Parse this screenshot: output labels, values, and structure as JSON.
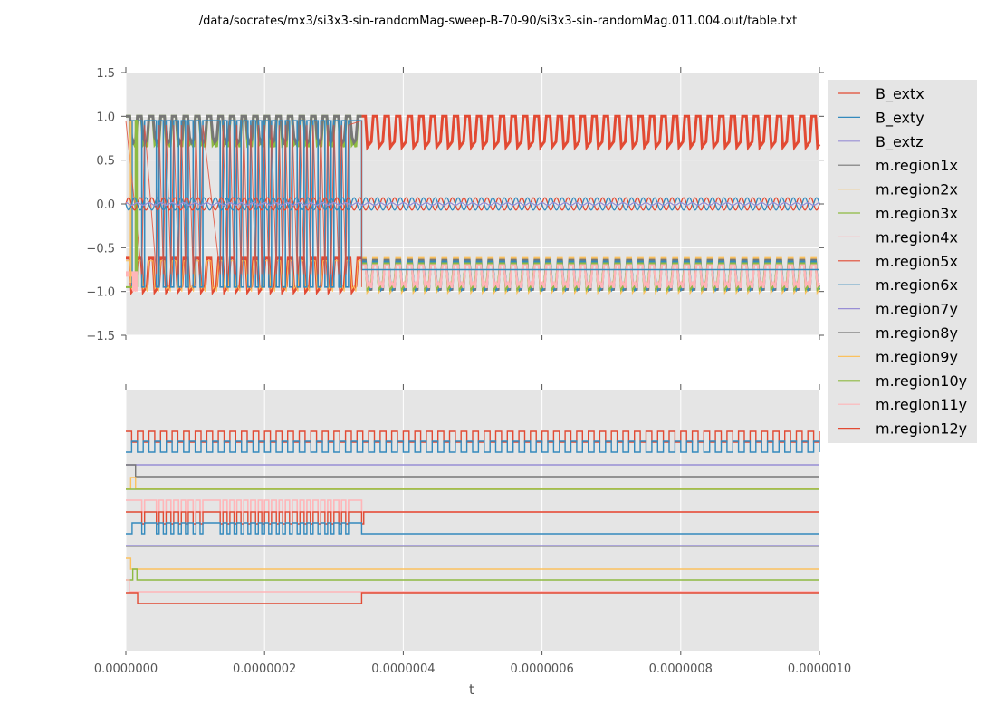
{
  "chart_data": {
    "title": "/data/socrates/mx3/si3x3-sin-randomMag-sweep-B-70-90/si3x3-sin-randomMag.011.004.out/table.txt",
    "type": "line",
    "style": {
      "background": "#e5e5e5",
      "grid_color": "#ffffff",
      "palette": [
        "#e24a33",
        "#348abd",
        "#988ed5",
        "#777777",
        "#fbc15e",
        "#8eba42",
        "#ffb5b8"
      ]
    },
    "legend": {
      "placement": "right, outside top axes",
      "entries": [
        {
          "label": "B_extx",
          "color": "#e24a33"
        },
        {
          "label": "B_exty",
          "color": "#348abd"
        },
        {
          "label": "B_extz",
          "color": "#988ed5"
        },
        {
          "label": "m.region1x",
          "color": "#777777"
        },
        {
          "label": "m.region2x",
          "color": "#fbc15e"
        },
        {
          "label": "m.region3x",
          "color": "#8eba42"
        },
        {
          "label": "m.region4x",
          "color": "#ffb5b8"
        },
        {
          "label": "m.region5x",
          "color": "#e24a33"
        },
        {
          "label": "m.region6x",
          "color": "#348abd"
        },
        {
          "label": "m.region7y",
          "color": "#988ed5"
        },
        {
          "label": "m.region8y",
          "color": "#777777"
        },
        {
          "label": "m.region9y",
          "color": "#fbc15e"
        },
        {
          "label": "m.region10y",
          "color": "#8eba42"
        },
        {
          "label": "m.region11y",
          "color": "#ffb5b8"
        },
        {
          "label": "m.region12y",
          "color": "#e24a33"
        }
      ]
    },
    "xlabel": "t",
    "xlim": [
      0,
      1e-06
    ],
    "xticks": [
      {
        "value": 0,
        "label": "0.0000000"
      },
      {
        "value": 2e-07,
        "label": "0.0000002"
      },
      {
        "value": 4e-07,
        "label": "0.0000004"
      },
      {
        "value": 6e-07,
        "label": "0.0000006"
      },
      {
        "value": 8e-07,
        "label": "0.0000008"
      },
      {
        "value": 1e-06,
        "label": "0.0000010"
      }
    ],
    "top_axes": {
      "ylim": [
        -1.5,
        1.5
      ],
      "yticks": [
        {
          "value": 1.5,
          "label": "1.5"
        },
        {
          "value": 1.0,
          "label": "1.0"
        },
        {
          "value": 0.5,
          "label": "0.5"
        },
        {
          "value": 0.0,
          "label": "0.0"
        },
        {
          "value": -0.5,
          "label": "−0.5"
        },
        {
          "value": -1.0,
          "label": "−1.0"
        },
        {
          "value": -1.5,
          "label": "−1.5"
        }
      ],
      "field_oscillation": {
        "amplitude": 0.07,
        "cycles": 60
      },
      "switch_end_time": 3.4e-07,
      "upper_band": [
        0.65,
        1.0
      ],
      "lower_band": [
        -1.0,
        -0.62
      ]
    },
    "bottom_axes": {
      "yticks_visible": false,
      "square_wave_cycles": 60,
      "region6x_pulse_times": [
        2.3e-08,
        4.4e-08,
        5.4e-08,
        6.5e-08,
        7.6e-08,
        8.6e-08,
        9.7e-08,
        1.07e-07,
        1.36e-07,
        1.46e-07,
        1.56e-07,
        1.66e-07,
        1.76e-07,
        1.87e-07,
        1.96e-07,
        2.06e-07,
        2.17e-07,
        2.26e-07,
        2.36e-07,
        2.47e-07,
        2.57e-07,
        2.66e-07,
        2.77e-07,
        2.87e-07,
        2.96e-07,
        3.07e-07,
        3.17e-07
      ],
      "region6x_rise_time": 9e-09,
      "region6x_end_time": 3.4e-07,
      "region1x_step_time": 1.4e-08,
      "region2x_pulse": [
        7e-09,
        1.4e-08
      ],
      "region9y_step_time": 7e-09,
      "region10y_pulse": [
        1e-08,
        1.6e-08
      ],
      "region11y_step_time": 5e-09,
      "region12y_low": [
        1.7e-08,
        3.4e-07
      ]
    }
  }
}
